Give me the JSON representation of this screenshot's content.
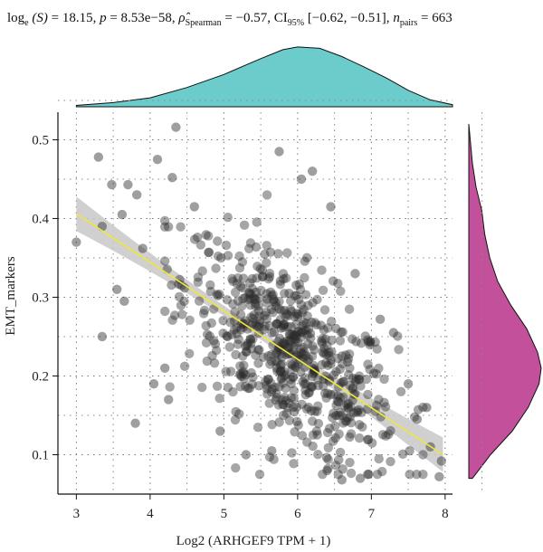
{
  "subtitle": {
    "log_label": "log",
    "log_base": "e",
    "stat_symbol": "(S)",
    "stat_value": "= 18.15,",
    "p_symbol": "p",
    "p_value": "= 8.53e−58,",
    "rho_symbol": "ρ̂",
    "rho_sub": "Spearman",
    "rho_value": "= −0.57,",
    "ci_label": "CI",
    "ci_sub": "95%",
    "ci_value": "[−0.62, −0.51],",
    "n_symbol": "n",
    "n_sub": "pairs",
    "n_value": "= 663"
  },
  "chart_data": {
    "type": "scatter",
    "xlabel": "Log2 (ARHGEF9 TPM + 1)",
    "ylabel": "EMT_markers",
    "xlim": [
      2.75,
      8.1
    ],
    "ylim": [
      0.05,
      0.535
    ],
    "x_ticks": [
      "3",
      "4",
      "5",
      "6",
      "7",
      "8"
    ],
    "y_ticks": [
      "0.1",
      "0.2",
      "0.3",
      "0.4",
      "0.5"
    ],
    "grid": true,
    "n_points": 663,
    "regression": {
      "x0": 3.0,
      "y0": 0.406,
      "x1": 7.97,
      "y1": 0.1,
      "ci_halfwidth_ends": 0.022,
      "ci_halfwidth_mid": 0.006,
      "color": "#f0e63a",
      "band_color": "#c8c8c8"
    },
    "outlier_points": [
      {
        "x": 3.0,
        "y": 0.37
      },
      {
        "x": 3.3,
        "y": 0.478
      },
      {
        "x": 3.48,
        "y": 0.443
      },
      {
        "x": 3.7,
        "y": 0.443
      },
      {
        "x": 3.35,
        "y": 0.39
      },
      {
        "x": 3.55,
        "y": 0.31
      },
      {
        "x": 3.35,
        "y": 0.25
      },
      {
        "x": 3.8,
        "y": 0.14
      },
      {
        "x": 3.65,
        "y": 0.295
      },
      {
        "x": 3.9,
        "y": 0.362
      },
      {
        "x": 4.35,
        "y": 0.516
      },
      {
        "x": 4.1,
        "y": 0.475
      },
      {
        "x": 4.3,
        "y": 0.452
      },
      {
        "x": 4.05,
        "y": 0.19
      },
      {
        "x": 4.25,
        "y": 0.17
      },
      {
        "x": 3.62,
        "y": 0.405
      },
      {
        "x": 3.82,
        "y": 0.43
      },
      {
        "x": 4.6,
        "y": 0.415
      },
      {
        "x": 4.2,
        "y": 0.21
      },
      {
        "x": 5.75,
        "y": 0.485
      },
      {
        "x": 6.05,
        "y": 0.45
      },
      {
        "x": 6.2,
        "y": 0.46
      },
      {
        "x": 6.45,
        "y": 0.415
      },
      {
        "x": 7.12,
        "y": 0.272
      },
      {
        "x": 7.3,
        "y": 0.255
      },
      {
        "x": 7.5,
        "y": 0.19
      },
      {
        "x": 7.62,
        "y": 0.145
      },
      {
        "x": 7.75,
        "y": 0.16
      },
      {
        "x": 7.95,
        "y": 0.092
      },
      {
        "x": 7.92,
        "y": 0.072
      },
      {
        "x": 7.8,
        "y": 0.11
      },
      {
        "x": 6.85,
        "y": 0.07
      },
      {
        "x": 6.6,
        "y": 0.068
      },
      {
        "x": 6.4,
        "y": 0.08
      },
      {
        "x": 6.95,
        "y": 0.075
      },
      {
        "x": 5.3,
        "y": 0.1
      },
      {
        "x": 5.65,
        "y": 0.105
      },
      {
        "x": 4.95,
        "y": 0.13
      },
      {
        "x": 6.78,
        "y": 0.33
      },
      {
        "x": 5.05,
        "y": 0.25
      }
    ],
    "cloud": {
      "count": 620,
      "x_mean": 5.9,
      "x_sd": 0.72,
      "slope": -0.062,
      "intercept": 0.593,
      "resid_sd": 0.056,
      "x_min": 4.2,
      "x_max": 7.7,
      "y_min": 0.075,
      "y_max": 0.43
    },
    "top_density": {
      "color": "#6ccccc",
      "x": [
        3.0,
        3.5,
        4.0,
        4.5,
        5.0,
        5.5,
        5.8,
        6.0,
        6.3,
        6.6,
        6.9,
        7.2,
        7.5,
        7.8,
        8.1
      ],
      "density": [
        0.02,
        0.06,
        0.13,
        0.28,
        0.47,
        0.7,
        0.83,
        0.87,
        0.85,
        0.73,
        0.58,
        0.42,
        0.24,
        0.1,
        0.03
      ]
    },
    "right_density": {
      "color": "#c3509b",
      "y": [
        0.07,
        0.1,
        0.13,
        0.16,
        0.19,
        0.21,
        0.23,
        0.26,
        0.29,
        0.32,
        0.35,
        0.38,
        0.41,
        0.44,
        0.47,
        0.5,
        0.52
      ],
      "density": [
        0.05,
        0.3,
        0.6,
        0.82,
        0.97,
        1.0,
        0.95,
        0.8,
        0.58,
        0.4,
        0.29,
        0.22,
        0.18,
        0.1,
        0.05,
        0.02,
        0.0
      ]
    }
  }
}
